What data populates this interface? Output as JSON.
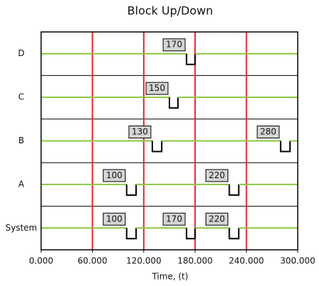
{
  "chart_data": {
    "type": "up-down",
    "title": "Block Up/Down",
    "x_label": "Time, (t)",
    "xlim": [
      0,
      300
    ],
    "xticks": [
      {
        "value": 0,
        "label": "0.000"
      },
      {
        "value": 60,
        "label": "60.000"
      },
      {
        "value": 120,
        "label": "120.000"
      },
      {
        "value": 180,
        "label": "180.000"
      },
      {
        "value": 240,
        "label": "240.000"
      },
      {
        "value": 300,
        "label": "300.000"
      }
    ],
    "grid": true,
    "grid_color": "#e3262b",
    "up_color": "#8cc63f",
    "down_color": "#000000",
    "rows": [
      {
        "name": "D",
        "events": [
          {
            "start": 170,
            "end": 180
          }
        ]
      },
      {
        "name": "C",
        "events": [
          {
            "start": 150,
            "end": 160
          }
        ]
      },
      {
        "name": "B",
        "events": [
          {
            "start": 130,
            "end": 141
          },
          {
            "start": 280,
            "end": 291
          }
        ]
      },
      {
        "name": "A",
        "events": [
          {
            "start": 100,
            "end": 111
          },
          {
            "start": 220,
            "end": 231
          }
        ]
      },
      {
        "name": "System",
        "events": [
          {
            "start": 100,
            "end": 111
          },
          {
            "start": 170,
            "end": 180
          },
          {
            "start": 220,
            "end": 231
          }
        ]
      }
    ]
  }
}
